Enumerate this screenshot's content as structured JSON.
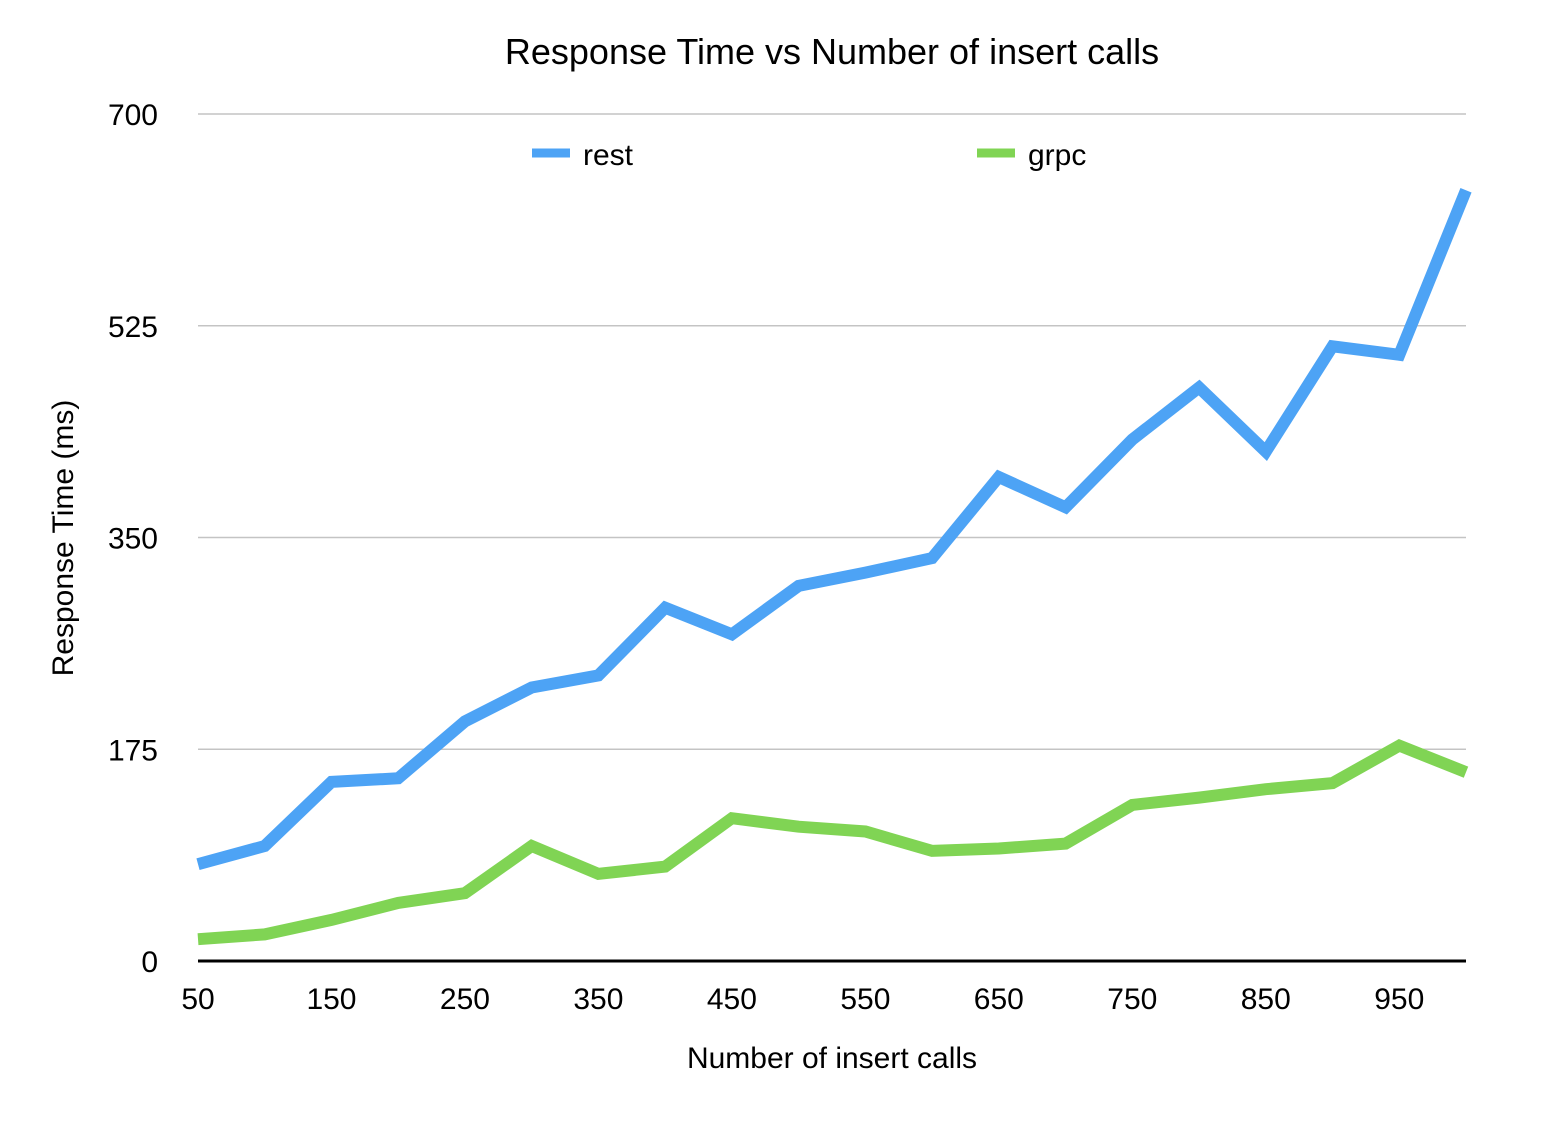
{
  "colors": {
    "rest": "#4da3f5",
    "grpc": "#80d454",
    "grid": "#c4c4c4"
  },
  "chart_data": {
    "type": "line",
    "title": "Response Time vs Number of insert calls",
    "xlabel": "Number of insert calls",
    "ylabel": "Response Time (ms)",
    "x": [
      50,
      100,
      150,
      200,
      250,
      300,
      350,
      400,
      450,
      500,
      550,
      600,
      650,
      700,
      750,
      800,
      850,
      900,
      950,
      1000
    ],
    "xlim": [
      50,
      1000
    ],
    "ylim": [
      0,
      700
    ],
    "x_ticks": [
      "50",
      "150",
      "250",
      "350",
      "450",
      "550",
      "650",
      "750",
      "850",
      "950"
    ],
    "y_ticks": [
      "0",
      "175",
      "350",
      "525",
      "700"
    ],
    "grid": "horizontal",
    "legend_position": "top",
    "series": [
      {
        "name": "rest",
        "color": "#4da3f5",
        "values": [
          80,
          95,
          148,
          151,
          198,
          226,
          236,
          292,
          270,
          310,
          321,
          333,
          400,
          375,
          431,
          474,
          421,
          508,
          501,
          637
        ]
      },
      {
        "name": "grpc",
        "color": "#80d454",
        "values": [
          18,
          22,
          34,
          48,
          56,
          95,
          72,
          78,
          118,
          111,
          107,
          91,
          93,
          97,
          129,
          135,
          142,
          147,
          178,
          156
        ]
      }
    ]
  }
}
